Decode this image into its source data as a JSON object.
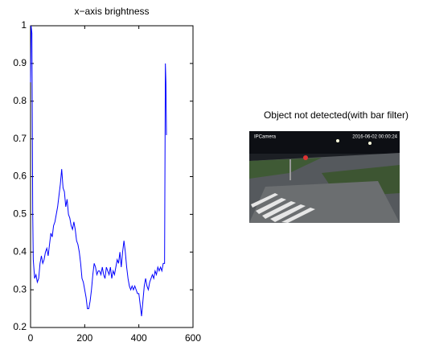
{
  "chart_data": {
    "type": "line",
    "title": "x−axis brightness",
    "x": [
      0,
      2,
      5,
      8,
      10,
      15,
      20,
      25,
      30,
      35,
      40,
      45,
      50,
      55,
      60,
      65,
      70,
      75,
      80,
      85,
      90,
      95,
      100,
      105,
      110,
      115,
      120,
      125,
      130,
      135,
      140,
      145,
      150,
      155,
      160,
      165,
      170,
      175,
      180,
      185,
      190,
      195,
      200,
      205,
      210,
      215,
      220,
      225,
      230,
      235,
      240,
      245,
      250,
      255,
      260,
      265,
      270,
      275,
      280,
      285,
      290,
      295,
      300,
      305,
      310,
      315,
      320,
      325,
      330,
      335,
      340,
      345,
      350,
      355,
      360,
      365,
      370,
      375,
      380,
      385,
      390,
      395,
      400,
      405,
      410,
      415,
      420,
      425,
      430,
      435,
      440,
      445,
      450,
      455,
      460,
      465,
      470,
      475,
      480,
      485,
      490,
      495,
      498,
      500,
      502
    ],
    "series": [
      {
        "color": "#0000ff",
        "values": [
          0.85,
          1.0,
          0.98,
          0.5,
          0.38,
          0.33,
          0.34,
          0.32,
          0.33,
          0.37,
          0.39,
          0.37,
          0.38,
          0.4,
          0.41,
          0.39,
          0.42,
          0.45,
          0.44,
          0.47,
          0.48,
          0.5,
          0.52,
          0.55,
          0.58,
          0.62,
          0.57,
          0.56,
          0.52,
          0.54,
          0.5,
          0.49,
          0.47,
          0.46,
          0.48,
          0.46,
          0.43,
          0.42,
          0.4,
          0.37,
          0.33,
          0.32,
          0.3,
          0.28,
          0.25,
          0.25,
          0.27,
          0.3,
          0.34,
          0.37,
          0.36,
          0.34,
          0.35,
          0.35,
          0.34,
          0.36,
          0.34,
          0.33,
          0.36,
          0.35,
          0.34,
          0.36,
          0.33,
          0.35,
          0.34,
          0.36,
          0.38,
          0.37,
          0.4,
          0.36,
          0.4,
          0.43,
          0.4,
          0.36,
          0.33,
          0.31,
          0.3,
          0.31,
          0.3,
          0.31,
          0.3,
          0.29,
          0.29,
          0.26,
          0.23,
          0.27,
          0.31,
          0.33,
          0.31,
          0.3,
          0.32,
          0.33,
          0.34,
          0.33,
          0.35,
          0.34,
          0.36,
          0.35,
          0.36,
          0.35,
          0.37,
          0.37,
          0.9,
          0.85,
          0.71
        ]
      }
    ],
    "xlim": [
      0,
      600
    ],
    "xticks": [
      0,
      200,
      400,
      600
    ],
    "ylim": [
      0.2,
      1
    ],
    "yticks": [
      0.2,
      0.3,
      0.4,
      0.5,
      0.6,
      0.7,
      0.8,
      0.9,
      1
    ]
  },
  "image_panel": {
    "title": "Object not detected(with bar filter)",
    "camera_label": "IPCamera",
    "timestamp": "2016-06-02 00:00:24"
  }
}
